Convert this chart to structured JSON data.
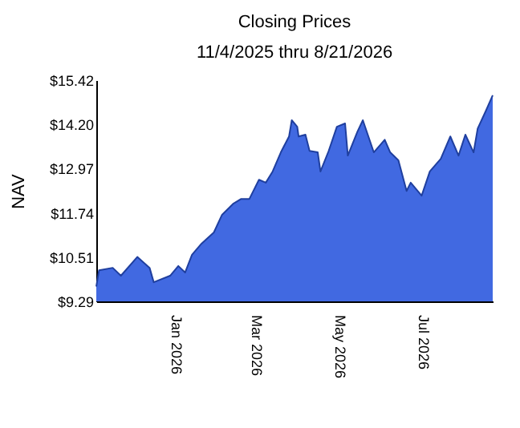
{
  "chart_data": {
    "type": "area",
    "title": "Closing Prices",
    "subtitle": "11/4/2025 thru 8/21/2026",
    "ylabel": "NAV",
    "x": [
      "2025-11-04",
      "2025-11-06",
      "2025-11-16",
      "2025-11-22",
      "2025-12-04",
      "2025-12-13",
      "2025-12-16",
      "2025-12-28",
      "2026-01-03",
      "2026-01-08",
      "2026-01-13",
      "2026-01-20",
      "2026-01-29",
      "2026-02-04",
      "2026-02-12",
      "2026-02-18",
      "2026-02-24",
      "2026-03-03",
      "2026-03-08",
      "2026-03-13",
      "2026-03-19",
      "2026-03-25",
      "2026-03-27",
      "2026-03-31",
      "2026-04-01",
      "2026-04-06",
      "2026-04-09",
      "2026-04-15",
      "2026-04-17",
      "2026-04-23",
      "2026-04-29",
      "2026-05-05",
      "2026-05-07",
      "2026-05-14",
      "2026-05-18",
      "2026-05-26",
      "2026-06-03",
      "2026-06-07",
      "2026-06-13",
      "2026-06-19",
      "2026-06-22",
      "2026-06-30",
      "2026-07-06",
      "2026-07-14",
      "2026-07-21",
      "2026-07-27",
      "2026-08-01",
      "2026-08-07",
      "2026-08-10",
      "2026-08-16",
      "2026-08-21"
    ],
    "series": [
      {
        "color": "#4169e1",
        "values": [
          9.7,
          10.15,
          10.22,
          10.0,
          10.52,
          10.22,
          9.82,
          10.0,
          10.27,
          10.09,
          10.58,
          10.89,
          11.2,
          11.69,
          11.99,
          12.13,
          12.13,
          12.66,
          12.58,
          12.89,
          13.42,
          13.86,
          14.31,
          14.13,
          13.86,
          13.91,
          13.46,
          13.42,
          12.89,
          13.46,
          14.13,
          14.22,
          13.33,
          13.99,
          14.31,
          13.42,
          13.77,
          13.42,
          13.2,
          12.35,
          12.58,
          12.22,
          12.89,
          13.24,
          13.86,
          13.33,
          13.91,
          13.42,
          14.08,
          14.57,
          15.0
        ]
      }
    ],
    "xlim": [
      "2025-11-04",
      "2026-08-21"
    ],
    "xticks": [
      {
        "value": "2026-01-01",
        "label": "Jan 2026"
      },
      {
        "value": "2026-03-01",
        "label": "Mar 2026"
      },
      {
        "value": "2026-05-01",
        "label": "May 2026"
      },
      {
        "value": "2026-07-01",
        "label": "Jul 2026"
      }
    ],
    "ylim": [
      9.29,
      15.42
    ],
    "yticks": [
      {
        "value": 9.29,
        "label": "$9.29"
      },
      {
        "value": 10.51,
        "label": "$10.51"
      },
      {
        "value": 11.74,
        "label": "$11.74"
      },
      {
        "value": 12.97,
        "label": "$12.97"
      },
      {
        "value": 14.2,
        "label": "$14.20"
      },
      {
        "value": 15.42,
        "label": "$15.42"
      }
    ],
    "grid": false
  }
}
